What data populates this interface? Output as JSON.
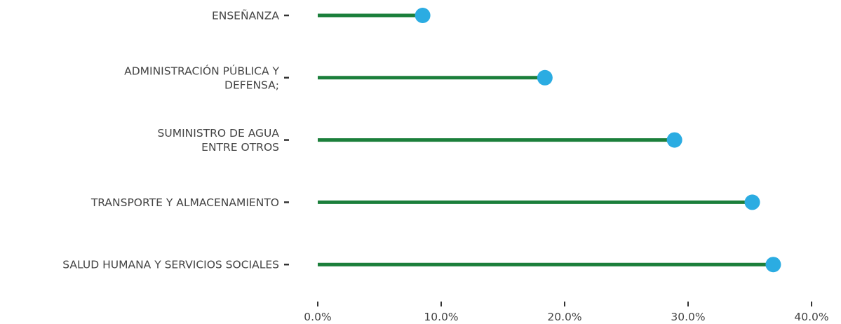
{
  "chart_data": {
    "type": "lollipop",
    "title": "",
    "xlabel": "",
    "ylabel": "",
    "categories": [
      [
        "ENSEÑANZA"
      ],
      [
        "ADMINISTRACIÓN PÚBLICA Y",
        "DEFENSA;"
      ],
      [
        "SUMINISTRO DE AGUA",
        "ENTRE OTROS"
      ],
      [
        "TRANSPORTE Y ALMACENAMIENTO"
      ],
      [
        "SALUD HUMANA Y SERVICIOS SOCIALES"
      ]
    ],
    "values": [
      8.5,
      18.4,
      28.9,
      35.2,
      36.9
    ],
    "value_unit": "%",
    "xlim": [
      0,
      40
    ],
    "xticks": [
      0,
      10,
      20,
      30,
      40
    ],
    "xtick_labels": [
      "0.0%",
      "10.0%",
      "20.0%",
      "30.0%",
      "40.0%"
    ],
    "grid": false,
    "colors": {
      "stem": "#1b7f3b",
      "dot": "#2bace2",
      "tick": "#333333",
      "text": "#444444"
    }
  }
}
